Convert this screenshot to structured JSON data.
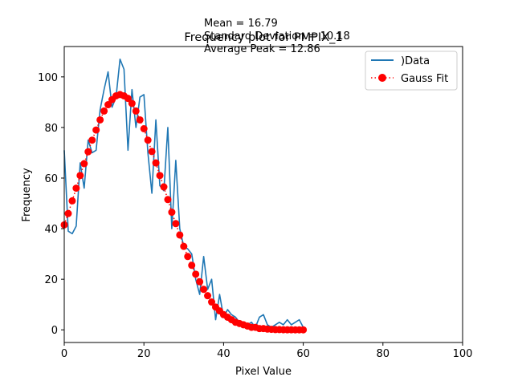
{
  "chart_data": {
    "type": "line",
    "title": "Frequency plot for PMPIX_1",
    "annotations": [
      "Mean = 16.79",
      "Standard Deviation = 10.18",
      "Average Peak = 12.86"
    ],
    "xlabel": "Pixel Value",
    "ylabel": "Frequency",
    "xlim": [
      0,
      100
    ],
    "ylim": [
      -5,
      112
    ],
    "xticks": [
      0,
      20,
      40,
      60,
      80,
      100
    ],
    "yticks": [
      0,
      20,
      40,
      60,
      80,
      100
    ],
    "legend_position": "upper right",
    "series": [
      {
        "name": ")Data",
        "style": "line",
        "color": "#1f77b4",
        "x": [
          0,
          1,
          2,
          3,
          4,
          5,
          6,
          7,
          8,
          9,
          10,
          11,
          12,
          13,
          14,
          15,
          16,
          17,
          18,
          19,
          20,
          21,
          22,
          23,
          24,
          25,
          26,
          27,
          28,
          29,
          30,
          31,
          32,
          33,
          34,
          35,
          36,
          37,
          38,
          39,
          40,
          41,
          42,
          43,
          44,
          45,
          46,
          47,
          48,
          49,
          50,
          51,
          52,
          53,
          54,
          55,
          56,
          57,
          58,
          59,
          60
        ],
        "y": [
          71,
          39,
          38,
          41,
          66,
          56,
          75,
          70,
          71,
          87,
          95,
          102,
          88,
          92,
          107,
          103,
          71,
          95,
          80,
          92,
          93,
          70,
          54,
          83,
          57,
          55,
          80,
          40,
          67,
          40,
          33,
          32,
          30,
          20,
          14,
          29,
          16,
          20,
          4,
          14,
          5,
          8,
          6,
          5,
          3,
          2,
          2,
          3,
          1,
          5,
          6,
          2,
          1,
          2,
          3,
          2,
          4,
          2,
          3,
          4,
          1
        ]
      },
      {
        "name": "Gauss Fit",
        "style": "dotted-markers",
        "color": "#ff0000",
        "x": [
          0,
          1,
          2,
          3,
          4,
          5,
          6,
          7,
          8,
          9,
          10,
          11,
          12,
          13,
          14,
          15,
          16,
          17,
          18,
          19,
          20,
          21,
          22,
          23,
          24,
          25,
          26,
          27,
          28,
          29,
          30,
          31,
          32,
          33,
          34,
          35,
          36,
          37,
          38,
          39,
          40,
          41,
          42,
          43,
          44,
          45,
          46,
          47,
          48,
          49,
          50,
          51,
          52,
          53,
          54,
          55,
          56,
          57,
          58,
          59,
          60
        ],
        "y": [
          41.5,
          46,
          51,
          56,
          61,
          65.7,
          70.4,
          75,
          79,
          83,
          86.5,
          89,
          91,
          92.5,
          93,
          92.5,
          91.5,
          89.5,
          86.5,
          83,
          79.5,
          75,
          70.5,
          66,
          61,
          56.5,
          51.5,
          46.5,
          42,
          37.5,
          33,
          29,
          25.5,
          22,
          19,
          16,
          13.5,
          11,
          9,
          7.5,
          6,
          5,
          4,
          3,
          2.5,
          2,
          1.5,
          1,
          1,
          0.5,
          0.5,
          0.3,
          0.2,
          0.1,
          0.1,
          0.05,
          0.03,
          0.02,
          0.01,
          0.01,
          0
        ]
      }
    ]
  }
}
